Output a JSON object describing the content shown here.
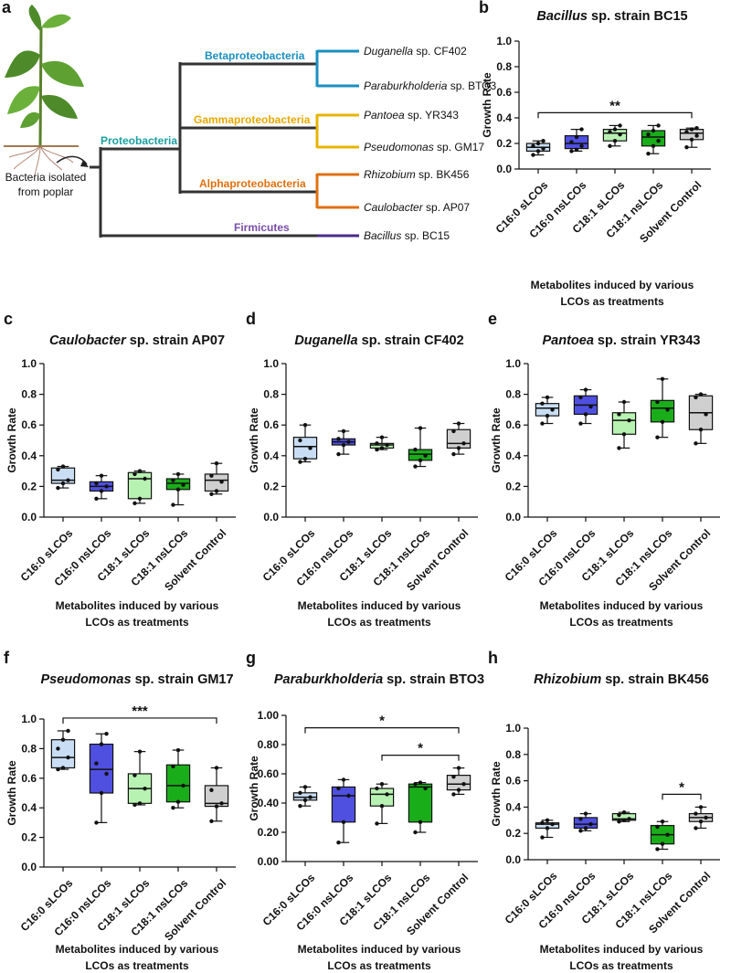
{
  "tree": {
    "panel": "a",
    "source": [
      "Bacteria  isolated",
      "from poplar"
    ],
    "clades": {
      "proteobacteria": "Proteobacteria",
      "beta": "Betaproteobacteria",
      "gamma": "Gammaproteobacteria",
      "alpha": "Alphaproteobacteria",
      "firmicutes": "Firmicutes"
    },
    "leaves": [
      {
        "genus": "Duganella",
        "rest": " sp. CF402"
      },
      {
        "genus": "Paraburkholderia",
        "rest": " sp. BTO3"
      },
      {
        "genus": "Pantoea",
        "rest": " sp. YR343"
      },
      {
        "genus": "Pseudomonas",
        "rest": " sp. GM17"
      },
      {
        "genus": "Rhizobium",
        "rest": " sp. BK456"
      },
      {
        "genus": "Caulobacter",
        "rest": " sp. AP07"
      },
      {
        "genus": "Bacillus",
        "rest": " sp. BC15"
      }
    ]
  },
  "chart_data": [
    {
      "type": "box",
      "panel": "b",
      "title": [
        "Bacillus",
        " sp. strain BC15"
      ],
      "ylabel": "Growth Rate",
      "xlabel": [
        "Metabolites induced by various",
        "LCOs as treatments"
      ],
      "categories": [
        "C16:0 sLCOs",
        "C16:0 nsLCOs",
        "C18:1 sLCOs",
        "C18:1 nsLCOs",
        "Solvent Control"
      ],
      "colors": [
        "#c9def4",
        "#4f4fe0",
        "#b8f2b2",
        "#1aad1a",
        "#cfcfcf"
      ],
      "ylim": [
        0,
        1
      ],
      "yticks": [
        {
          "value": 0,
          "label": "0.0"
        },
        {
          "value": 0.2,
          "label": "0.2"
        },
        {
          "value": 0.4,
          "label": "0.4"
        },
        {
          "value": 0.6,
          "label": "0.6"
        },
        {
          "value": 0.8,
          "label": "0.8"
        },
        {
          "value": 1,
          "label": "1.0"
        }
      ],
      "boxes": [
        {
          "min": 0.11,
          "q1": 0.14,
          "median": 0.17,
          "q3": 0.2,
          "max": 0.22,
          "points": [
            0.11,
            0.14,
            0.16,
            0.18,
            0.2,
            0.22
          ]
        },
        {
          "min": 0.14,
          "q1": 0.16,
          "median": 0.2,
          "q3": 0.26,
          "max": 0.31,
          "points": [
            0.14,
            0.15,
            0.18,
            0.21,
            0.25,
            0.31
          ]
        },
        {
          "min": 0.18,
          "q1": 0.22,
          "median": 0.28,
          "q3": 0.31,
          "max": 0.34,
          "points": [
            0.18,
            0.22,
            0.27,
            0.29,
            0.31,
            0.34
          ]
        },
        {
          "min": 0.12,
          "q1": 0.18,
          "median": 0.25,
          "q3": 0.3,
          "max": 0.34,
          "points": [
            0.12,
            0.18,
            0.22,
            0.27,
            0.3,
            0.34
          ]
        },
        {
          "min": 0.17,
          "q1": 0.23,
          "median": 0.28,
          "q3": 0.31,
          "max": 0.32,
          "points": [
            0.17,
            0.23,
            0.26,
            0.29,
            0.31,
            0.32
          ]
        }
      ],
      "significance": [
        {
          "from": 0,
          "to": 4,
          "label": "**"
        }
      ]
    },
    {
      "type": "box",
      "panel": "c",
      "title": [
        "Caulobacter",
        " sp. strain AP07"
      ],
      "ylabel": "Growth Rate",
      "xlabel": [
        "Metabolites induced by various",
        "LCOs as treatments"
      ],
      "categories": [
        "C16:0 sLCOs",
        "C16:0 nsLCOs",
        "C18:1 sLCOs",
        "C18:1 nsLCOs",
        "Solvent Control"
      ],
      "colors": [
        "#c9def4",
        "#4f4fe0",
        "#b8f2b2",
        "#1aad1a",
        "#cfcfcf"
      ],
      "ylim": [
        0,
        1
      ],
      "yticks": [
        {
          "value": 0,
          "label": "0.0"
        },
        {
          "value": 0.2,
          "label": "0.2"
        },
        {
          "value": 0.4,
          "label": "0.4"
        },
        {
          "value": 0.6,
          "label": "0.6"
        },
        {
          "value": 0.8,
          "label": "0.8"
        },
        {
          "value": 1,
          "label": "1.0"
        }
      ],
      "boxes": [
        {
          "min": 0.19,
          "q1": 0.22,
          "median": 0.24,
          "q3": 0.32,
          "max": 0.33,
          "points": [
            0.19,
            0.22,
            0.24,
            0.31,
            0.33
          ]
        },
        {
          "min": 0.12,
          "q1": 0.17,
          "median": 0.2,
          "q3": 0.23,
          "max": 0.27,
          "points": [
            0.12,
            0.17,
            0.2,
            0.22,
            0.27
          ]
        },
        {
          "min": 0.09,
          "q1": 0.12,
          "median": 0.25,
          "q3": 0.29,
          "max": 0.3,
          "points": [
            0.09,
            0.12,
            0.25,
            0.28,
            0.3
          ]
        },
        {
          "min": 0.08,
          "q1": 0.18,
          "median": 0.22,
          "q3": 0.25,
          "max": 0.28,
          "points": [
            0.08,
            0.18,
            0.21,
            0.24,
            0.28
          ]
        },
        {
          "min": 0.15,
          "q1": 0.17,
          "median": 0.24,
          "q3": 0.28,
          "max": 0.35,
          "points": [
            0.15,
            0.17,
            0.23,
            0.27,
            0.35
          ]
        }
      ],
      "significance": []
    },
    {
      "type": "box",
      "panel": "d",
      "title": [
        "Duganella",
        " sp. strain CF402"
      ],
      "ylabel": "Growth Rate",
      "xlabel": [
        "Metabolites induced by various",
        "LCOs as treatments"
      ],
      "categories": [
        "C16:0 sLCOs",
        "C16:0 nsLCOs",
        "C18:1 sLCOs",
        "C18:1 nsLCOs",
        "Solvent Control"
      ],
      "colors": [
        "#c9def4",
        "#4f4fe0",
        "#b8f2b2",
        "#1aad1a",
        "#cfcfcf"
      ],
      "ylim": [
        0,
        1
      ],
      "yticks": [
        {
          "value": 0,
          "label": "0.0"
        },
        {
          "value": 0.2,
          "label": "0.2"
        },
        {
          "value": 0.4,
          "label": "0.4"
        },
        {
          "value": 0.6,
          "label": "0.6"
        },
        {
          "value": 0.8,
          "label": "0.8"
        },
        {
          "value": 1,
          "label": "1.0"
        }
      ],
      "boxes": [
        {
          "min": 0.36,
          "q1": 0.38,
          "median": 0.46,
          "q3": 0.52,
          "max": 0.6,
          "points": [
            0.36,
            0.38,
            0.45,
            0.5,
            0.6
          ]
        },
        {
          "min": 0.41,
          "q1": 0.47,
          "median": 0.49,
          "q3": 0.51,
          "max": 0.56,
          "points": [
            0.41,
            0.47,
            0.49,
            0.51,
            0.56
          ]
        },
        {
          "min": 0.44,
          "q1": 0.45,
          "median": 0.47,
          "q3": 0.48,
          "max": 0.52,
          "points": [
            0.44,
            0.45,
            0.47,
            0.48,
            0.52
          ]
        },
        {
          "min": 0.33,
          "q1": 0.37,
          "median": 0.41,
          "q3": 0.44,
          "max": 0.58,
          "points": [
            0.33,
            0.37,
            0.4,
            0.44,
            0.58
          ]
        },
        {
          "min": 0.41,
          "q1": 0.45,
          "median": 0.48,
          "q3": 0.57,
          "max": 0.61,
          "points": [
            0.41,
            0.45,
            0.48,
            0.56,
            0.61
          ]
        }
      ],
      "significance": []
    },
    {
      "type": "box",
      "panel": "e",
      "title": [
        "Pantoea",
        " sp. strain YR343"
      ],
      "ylabel": "Growth Rate",
      "xlabel": [
        "Metabolites induced by various",
        "LCOs as treatments"
      ],
      "categories": [
        "C16:0 sLCOs",
        "C16:0 nsLCOs",
        "C18:1 sLCOs",
        "C18:1 nsLCOs",
        "Solvent Control"
      ],
      "colors": [
        "#c9def4",
        "#4f4fe0",
        "#b8f2b2",
        "#1aad1a",
        "#cfcfcf"
      ],
      "ylim": [
        0,
        1
      ],
      "yticks": [
        {
          "value": 0,
          "label": "0.0"
        },
        {
          "value": 0.2,
          "label": "0.2"
        },
        {
          "value": 0.4,
          "label": "0.4"
        },
        {
          "value": 0.6,
          "label": "0.6"
        },
        {
          "value": 0.8,
          "label": "0.8"
        },
        {
          "value": 1,
          "label": "1.0"
        }
      ],
      "boxes": [
        {
          "min": 0.61,
          "q1": 0.66,
          "median": 0.71,
          "q3": 0.74,
          "max": 0.78,
          "points": [
            0.61,
            0.66,
            0.7,
            0.74,
            0.78
          ]
        },
        {
          "min": 0.61,
          "q1": 0.67,
          "median": 0.73,
          "q3": 0.79,
          "max": 0.83,
          "points": [
            0.61,
            0.67,
            0.72,
            0.78,
            0.83
          ]
        },
        {
          "min": 0.45,
          "q1": 0.54,
          "median": 0.63,
          "q3": 0.68,
          "max": 0.75,
          "points": [
            0.45,
            0.54,
            0.63,
            0.67,
            0.75
          ]
        },
        {
          "min": 0.52,
          "q1": 0.62,
          "median": 0.71,
          "q3": 0.76,
          "max": 0.9,
          "points": [
            0.52,
            0.62,
            0.7,
            0.75,
            0.9
          ]
        },
        {
          "min": 0.48,
          "q1": 0.57,
          "median": 0.68,
          "q3": 0.79,
          "max": 0.8,
          "points": [
            0.48,
            0.57,
            0.67,
            0.78,
            0.8
          ]
        }
      ],
      "significance": []
    },
    {
      "type": "box",
      "panel": "f",
      "title": [
        "Pseudomonas",
        " sp. strain GM17"
      ],
      "ylabel": "Growth Rate",
      "xlabel": [
        "Metabolites induced by various",
        "LCOs as treatments"
      ],
      "categories": [
        "C16:0 sLCOs",
        "C16:0 nsLCOs",
        "C18:1 sLCOs",
        "C18:1 nsLCOs",
        "Solvent Control"
      ],
      "colors": [
        "#c9def4",
        "#4f4fe0",
        "#b8f2b2",
        "#1aad1a",
        "#cfcfcf"
      ],
      "ylim": [
        0,
        1
      ],
      "yticks": [
        {
          "value": 0,
          "label": "0.0"
        },
        {
          "value": 0.2,
          "label": "0.2"
        },
        {
          "value": 0.4,
          "label": "0.4"
        },
        {
          "value": 0.6,
          "label": "0.6"
        },
        {
          "value": 0.8,
          "label": "0.8"
        },
        {
          "value": 1,
          "label": "1.0"
        }
      ],
      "boxes": [
        {
          "min": 0.66,
          "q1": 0.67,
          "median": 0.74,
          "q3": 0.86,
          "max": 0.92,
          "points": [
            0.66,
            0.67,
            0.74,
            0.8,
            0.86,
            0.92
          ]
        },
        {
          "min": 0.3,
          "q1": 0.5,
          "median": 0.66,
          "q3": 0.83,
          "max": 0.9,
          "points": [
            0.3,
            0.5,
            0.63,
            0.7,
            0.83,
            0.9
          ]
        },
        {
          "min": 0.42,
          "q1": 0.43,
          "median": 0.53,
          "q3": 0.63,
          "max": 0.78,
          "points": [
            0.42,
            0.43,
            0.53,
            0.62,
            0.78
          ]
        },
        {
          "min": 0.4,
          "q1": 0.44,
          "median": 0.55,
          "q3": 0.69,
          "max": 0.79,
          "points": [
            0.4,
            0.44,
            0.55,
            0.68,
            0.79
          ]
        },
        {
          "min": 0.31,
          "q1": 0.41,
          "median": 0.43,
          "q3": 0.55,
          "max": 0.67,
          "points": [
            0.31,
            0.41,
            0.43,
            0.52,
            0.67
          ]
        }
      ],
      "significance": [
        {
          "from": 0,
          "to": 4,
          "label": "***"
        }
      ]
    },
    {
      "type": "box",
      "panel": "g",
      "title": [
        "Paraburkholderia",
        " sp. strain BTO3"
      ],
      "ylabel": "Growth Rate",
      "xlabel": [
        "Metabolites induced by various",
        "LCOs as treatments"
      ],
      "categories": [
        "C16:0 sLCOs",
        "C16:0 nsLCOs",
        "C18:1 sLCOs",
        "C18:1 nsLCOs",
        "Solvent Control"
      ],
      "colors": [
        "#c9def4",
        "#4f4fe0",
        "#b8f2b2",
        "#1aad1a",
        "#cfcfcf"
      ],
      "ylim": [
        0,
        1
      ],
      "yticks": [
        {
          "value": 0,
          "label": "0.00"
        },
        {
          "value": 0.2,
          "label": "0.20"
        },
        {
          "value": 0.4,
          "label": "0.40"
        },
        {
          "value": 0.6,
          "label": "0.60"
        },
        {
          "value": 0.8,
          "label": "0.80"
        },
        {
          "value": 1,
          "label": "1.00"
        }
      ],
      "boxes": [
        {
          "min": 0.38,
          "q1": 0.42,
          "median": 0.44,
          "q3": 0.47,
          "max": 0.51,
          "points": [
            0.38,
            0.42,
            0.44,
            0.47,
            0.51
          ]
        },
        {
          "min": 0.13,
          "q1": 0.27,
          "median": 0.45,
          "q3": 0.51,
          "max": 0.56,
          "points": [
            0.13,
            0.27,
            0.45,
            0.5,
            0.56
          ]
        },
        {
          "min": 0.26,
          "q1": 0.38,
          "median": 0.46,
          "q3": 0.5,
          "max": 0.53,
          "points": [
            0.26,
            0.38,
            0.46,
            0.5,
            0.53
          ]
        },
        {
          "min": 0.2,
          "q1": 0.27,
          "median": 0.51,
          "q3": 0.53,
          "max": 0.54,
          "points": [
            0.2,
            0.27,
            0.5,
            0.53,
            0.54
          ]
        },
        {
          "min": 0.46,
          "q1": 0.49,
          "median": 0.53,
          "q3": 0.59,
          "max": 0.64,
          "points": [
            0.46,
            0.49,
            0.53,
            0.58,
            0.64
          ]
        }
      ],
      "significance": [
        {
          "from": 0,
          "to": 4,
          "label": "*"
        },
        {
          "from": 2,
          "to": 4,
          "label": "*"
        }
      ]
    },
    {
      "type": "box",
      "panel": "h",
      "title": [
        "Rhizobium",
        " sp. strain BK456"
      ],
      "ylabel": "Growth Rate",
      "xlabel": [
        "Metabolites induced by various",
        "LCOs as treatments"
      ],
      "categories": [
        "C16:0 sLCOs",
        "C16:0 nsLCOs",
        "C18:1 sLCOs",
        "C18:1 nsLCOs",
        "Solvent Control"
      ],
      "colors": [
        "#c9def4",
        "#4f4fe0",
        "#b8f2b2",
        "#1aad1a",
        "#cfcfcf"
      ],
      "ylim": [
        0,
        1
      ],
      "yticks": [
        {
          "value": 0,
          "label": "0.0"
        },
        {
          "value": 0.2,
          "label": "0.2"
        },
        {
          "value": 0.4,
          "label": "0.4"
        },
        {
          "value": 0.6,
          "label": "0.6"
        },
        {
          "value": 0.8,
          "label": "0.8"
        },
        {
          "value": 1,
          "label": "1.0"
        }
      ],
      "boxes": [
        {
          "min": 0.17,
          "q1": 0.24,
          "median": 0.27,
          "q3": 0.28,
          "max": 0.3,
          "points": [
            0.17,
            0.24,
            0.27,
            0.28,
            0.3
          ]
        },
        {
          "min": 0.22,
          "q1": 0.24,
          "median": 0.27,
          "q3": 0.32,
          "max": 0.35,
          "points": [
            0.22,
            0.24,
            0.27,
            0.31,
            0.35
          ]
        },
        {
          "min": 0.29,
          "q1": 0.3,
          "median": 0.31,
          "q3": 0.35,
          "max": 0.36,
          "points": [
            0.29,
            0.3,
            0.31,
            0.34,
            0.36
          ]
        },
        {
          "min": 0.08,
          "q1": 0.12,
          "median": 0.19,
          "q3": 0.26,
          "max": 0.29,
          "points": [
            0.08,
            0.12,
            0.19,
            0.25,
            0.29
          ]
        },
        {
          "min": 0.24,
          "q1": 0.29,
          "median": 0.32,
          "q3": 0.35,
          "max": 0.4,
          "points": [
            0.24,
            0.29,
            0.32,
            0.35,
            0.4
          ]
        }
      ],
      "significance": [
        {
          "from": 3,
          "to": 4,
          "label": "*"
        }
      ]
    }
  ]
}
